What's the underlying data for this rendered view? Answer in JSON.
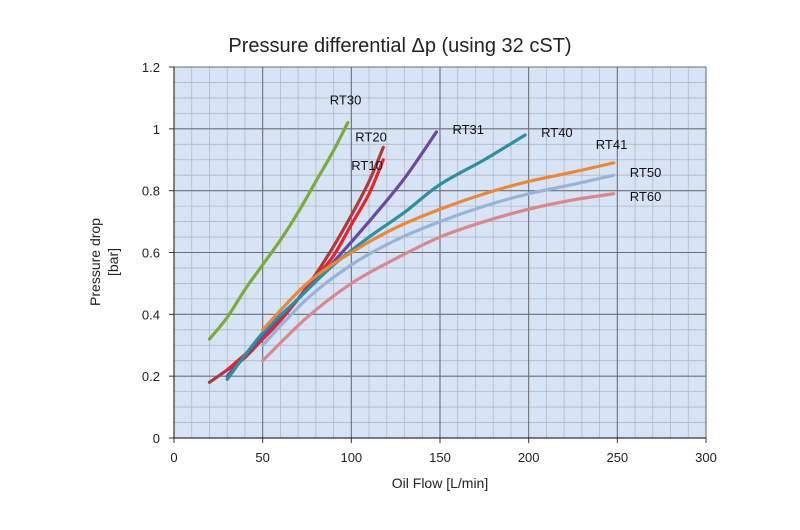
{
  "chart_data": {
    "type": "line",
    "title": "Pressure differential Δp (using 32 cST)",
    "xlabel": "Oil Flow [L/min]",
    "ylabel": [
      "Pressure drop",
      "[bar]"
    ],
    "xlim": [
      0,
      300
    ],
    "ylim": [
      0,
      1.2
    ],
    "xticks": [
      "0",
      "50",
      "100",
      "150",
      "200",
      "250",
      "300"
    ],
    "yticks": [
      "0",
      "0.2",
      "0.4",
      "0.6",
      "0.8",
      "1",
      "1.2"
    ],
    "grid": true,
    "plot_background": "#d6e4f5",
    "series": [
      {
        "name": "RT30",
        "color": "#7daa3c",
        "x": [
          20,
          30,
          40,
          50,
          60,
          70,
          80,
          90,
          98
        ],
        "y": [
          0.32,
          0.39,
          0.48,
          0.56,
          0.64,
          0.73,
          0.83,
          0.93,
          1.02
        ]
      },
      {
        "name": "RT20",
        "color": "#b03a3a",
        "x": [
          20,
          30,
          40,
          50,
          60,
          70,
          80,
          90,
          100,
          110,
          118
        ],
        "y": [
          0.18,
          0.22,
          0.26,
          0.32,
          0.38,
          0.45,
          0.53,
          0.62,
          0.72,
          0.83,
          0.94
        ]
      },
      {
        "name": "RT10",
        "color": "#e8242b",
        "x": [
          30,
          40,
          50,
          60,
          70,
          80,
          90,
          100,
          110,
          118
        ],
        "y": [
          0.22,
          0.27,
          0.32,
          0.38,
          0.45,
          0.52,
          0.59,
          0.69,
          0.79,
          0.9
        ]
      },
      {
        "name": "RT31",
        "color": "#6a4aa0",
        "x": [
          30,
          50,
          70,
          90,
          110,
          130,
          148
        ],
        "y": [
          0.2,
          0.33,
          0.45,
          0.57,
          0.7,
          0.84,
          0.99
        ]
      },
      {
        "name": "RT40",
        "color": "#2f8ea0",
        "x": [
          30,
          50,
          70,
          90,
          110,
          130,
          150,
          175,
          198
        ],
        "y": [
          0.19,
          0.34,
          0.45,
          0.56,
          0.65,
          0.73,
          0.82,
          0.9,
          0.98
        ]
      },
      {
        "name": "RT41",
        "color": "#e7883a",
        "x": [
          50,
          75,
          100,
          125,
          150,
          175,
          200,
          225,
          248
        ],
        "y": [
          0.35,
          0.5,
          0.6,
          0.68,
          0.74,
          0.79,
          0.83,
          0.86,
          0.89
        ]
      },
      {
        "name": "RT50",
        "color": "#9bb2d6",
        "x": [
          50,
          75,
          100,
          125,
          150,
          175,
          200,
          225,
          248
        ],
        "y": [
          0.3,
          0.45,
          0.56,
          0.64,
          0.7,
          0.75,
          0.79,
          0.82,
          0.85
        ]
      },
      {
        "name": "RT60",
        "color": "#d9898e",
        "x": [
          50,
          75,
          100,
          125,
          150,
          175,
          200,
          225,
          248
        ],
        "y": [
          0.25,
          0.39,
          0.5,
          0.58,
          0.65,
          0.7,
          0.74,
          0.77,
          0.79
        ]
      }
    ]
  }
}
